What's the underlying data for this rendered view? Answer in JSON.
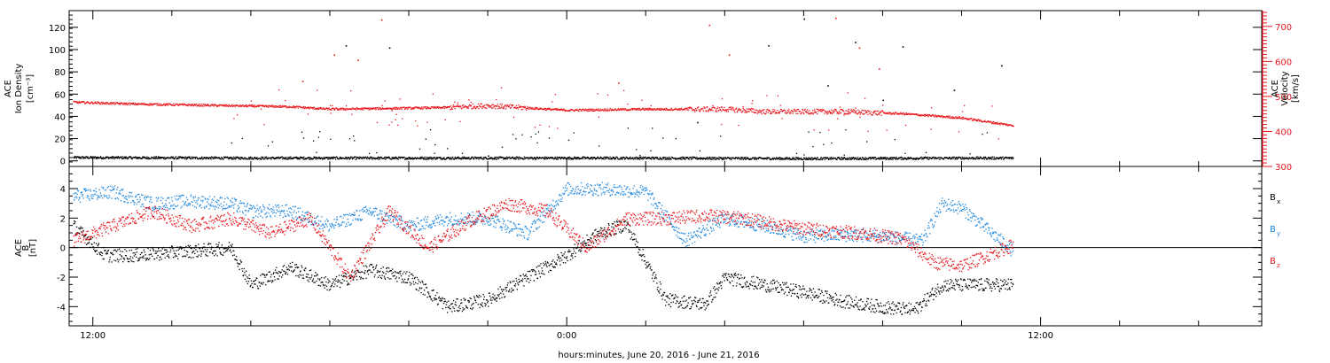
{
  "chart_data": [
    {
      "type": "scatter",
      "panel": "top",
      "ylabel_left": [
        "ACE",
        "Ion Density",
        "[cm⁻³]"
      ],
      "ylabel_right": [
        "ACE",
        "Velocity",
        "[km/s]"
      ],
      "y_left_lim": [
        -5,
        135
      ],
      "y_left_ticks": [
        0,
        20,
        40,
        60,
        80,
        100,
        120
      ],
      "y_left_tick_labels": [
        "0",
        "20",
        "40",
        "60",
        "80",
        "100",
        "120"
      ],
      "y_right_lim": [
        300,
        745
      ],
      "y_right_ticks": [
        300,
        400,
        500,
        600,
        700
      ],
      "y_right_tick_labels": [
        "300",
        "400",
        "500",
        "600",
        "700"
      ],
      "series": [
        {
          "color": "#000000",
          "axis": "left",
          "baseline_x_hours": [
            -0.5,
            3.5,
            8.0,
            14.0,
            18.0,
            22.0,
            23.3
          ],
          "baseline_y": [
            3.5,
            3.0,
            3.0,
            3.0,
            2.5,
            3.0,
            3.0
          ],
          "outliers_x_hours": [
            6.4,
            7.5,
            10.0,
            17.1,
            18.0,
            19.3,
            20.5,
            23.0,
            20.0,
            15.3,
            21.8,
            18.6
          ],
          "outliers_y": [
            104,
            102,
            5,
            104,
            128,
            107,
            103,
            86,
            55,
            35,
            64,
            68
          ]
        },
        {
          "color": "#e8161c",
          "axis": "right",
          "baseline_x_hours": [
            -0.5,
            1.0,
            3.0,
            5.0,
            6.0,
            8.0,
            9.0,
            10.0,
            12.0,
            14.0,
            16.0,
            17.0,
            19.0,
            20.5,
            22.0,
            23.3
          ],
          "baseline_y": [
            485,
            480,
            476,
            472,
            465,
            468,
            470,
            475,
            462,
            465,
            465,
            458,
            458,
            452,
            440,
            418
          ],
          "outliers_x_hours": [
            5.3,
            6.1,
            6.7,
            7.3,
            15.6,
            16.1,
            18.8,
            19.4,
            19.9,
            13.3
          ],
          "outliers_y": [
            545,
            620,
            605,
            720,
            705,
            620,
            725,
            640,
            580,
            540
          ]
        }
      ]
    },
    {
      "type": "scatter",
      "panel": "bottom",
      "ylabel_left": [
        "ACE",
        "B",
        "[nT]"
      ],
      "y_lim": [
        -5.3,
        5.5
      ],
      "y_ticks": [
        -4,
        -2,
        0,
        2,
        4
      ],
      "y_tick_labels": [
        "-4",
        "-2",
        "0",
        "2",
        "4"
      ],
      "zero_line": true,
      "legend": [
        {
          "main": "B",
          "sub": "x",
          "color": "#000000"
        },
        {
          "main": "B",
          "sub": "y",
          "color": "#1e87e0"
        },
        {
          "main": "B",
          "sub": "z",
          "color": "#e8161c"
        }
      ],
      "series": [
        {
          "color": "#000000",
          "x_hours": [
            -0.5,
            0.3,
            1.0,
            2.0,
            3.5,
            4.0,
            5.0,
            6.0,
            7.0,
            8.0,
            8.5,
            9.0,
            10.0,
            11.0,
            12.0,
            12.8,
            13.5,
            14.5,
            15.5,
            16.0,
            17.0,
            18.0,
            19.0,
            20.0,
            20.8,
            21.5,
            22.5,
            23.3
          ],
          "y": [
            1.5,
            -0.5,
            -0.5,
            -0.3,
            0.0,
            -2.5,
            -1.3,
            -2.5,
            -1.5,
            -2.0,
            -3.0,
            -4.0,
            -3.5,
            -2.0,
            -0.5,
            1.0,
            1.6,
            -3.5,
            -3.8,
            -2.0,
            -2.5,
            -3.0,
            -3.6,
            -4.0,
            -4.2,
            -2.5,
            -2.5,
            -2.5
          ]
        },
        {
          "color": "#1e87e0",
          "x_hours": [
            -0.5,
            0.5,
            1.5,
            2.5,
            3.5,
            4.0,
            5.0,
            6.0,
            7.0,
            8.0,
            9.0,
            10.0,
            11.0,
            12.0,
            13.0,
            14.0,
            15.0,
            16.0,
            17.0,
            18.0,
            19.0,
            20.0,
            21.0,
            21.5,
            22.0,
            23.3
          ],
          "y": [
            3.5,
            3.8,
            3.0,
            3.2,
            3.0,
            2.5,
            2.5,
            1.5,
            2.5,
            1.5,
            2.0,
            2.0,
            1.0,
            4.0,
            4.0,
            3.8,
            0.5,
            2.0,
            1.5,
            0.8,
            0.9,
            0.8,
            0.5,
            3.0,
            2.7,
            -0.2
          ]
        },
        {
          "color": "#e8161c",
          "x_hours": [
            -0.5,
            0.5,
            1.5,
            2.5,
            3.5,
            4.5,
            5.5,
            6.5,
            7.5,
            8.5,
            9.5,
            10.5,
            11.5,
            12.5,
            13.5,
            14.5,
            15.5,
            16.5,
            17.5,
            18.5,
            19.5,
            20.5,
            21.3,
            22.0,
            23.3
          ],
          "y": [
            0.5,
            1.5,
            2.5,
            1.5,
            2.0,
            1.0,
            2.0,
            -2.0,
            2.5,
            0.0,
            1.8,
            3.0,
            2.5,
            0.0,
            2.0,
            2.0,
            2.2,
            2.0,
            1.5,
            1.2,
            1.0,
            0.6,
            -1.0,
            -1.2,
            0.2
          ]
        }
      ]
    }
  ],
  "x_axis": {
    "range_hours": [
      -0.6,
      29.6
    ],
    "major_ticks_hours": [
      0,
      12,
      24
    ],
    "major_tick_labels": [
      "12:00",
      "0:00",
      "12:00"
    ],
    "minor_tick_step_hours": 2,
    "xlabel": "hours:minutes, June 20, 2016 - June 21, 2016"
  }
}
